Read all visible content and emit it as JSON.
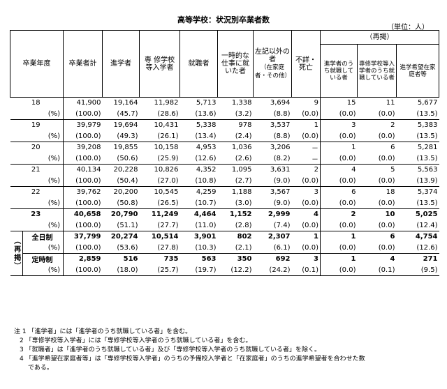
{
  "title": "高等学校：状況別卒業者数",
  "unit": "（単位：人）",
  "headers": {
    "year": "卒業年度",
    "total": "卒業者計",
    "advance": "進学者",
    "vocational": "専 修学校等入学者",
    "employed": "就職者",
    "temp": "一時的な仕事に就いた者",
    "other": "左記以外の者",
    "other_note": "（在家庭者・その他）",
    "unknown": "不詳・死亡",
    "reprint": "（再掲）",
    "r1": "進学者のうち就職している者",
    "r2": "専修学校等入学者のうち就職している者",
    "r3": "進学希望在家庭者等"
  },
  "rows": [
    {
      "label": "18",
      "values": [
        "41,900",
        "19,164",
        "11,982",
        "5,713",
        "1,338",
        "3,694",
        "9",
        "15",
        "11",
        "5,677"
      ],
      "pct": [
        "(100.0)",
        "(45.7)",
        "(28.6)",
        "(13.6)",
        "(3.2)",
        "(8.8)",
        "(0.0)",
        "(0.0)",
        "(0.0)",
        "(13.5)"
      ]
    },
    {
      "label": "19",
      "values": [
        "39,979",
        "19,694",
        "10,431",
        "5,338",
        "978",
        "3,537",
        "1",
        "3",
        "2",
        "5,383"
      ],
      "pct": [
        "(100.0)",
        "(49.3)",
        "(26.1)",
        "(13.4)",
        "(2.4)",
        "(8.8)",
        "(0.0)",
        "(0.0)",
        "(0.0)",
        "(13.5)"
      ]
    },
    {
      "label": "20",
      "values": [
        "39,208",
        "19,855",
        "10,158",
        "4,953",
        "1,036",
        "3,206",
        "－",
        "1",
        "6",
        "5,281"
      ],
      "pct": [
        "(100.0)",
        "(50.6)",
        "(25.9)",
        "(12.6)",
        "(2.6)",
        "(8.2)",
        "－",
        "(0.0)",
        "(0.0)",
        "(13.5)"
      ]
    },
    {
      "label": "21",
      "values": [
        "40,134",
        "20,228",
        "10,826",
        "4,352",
        "1,095",
        "3,631",
        "2",
        "4",
        "5",
        "5,563"
      ],
      "pct": [
        "(100.0)",
        "(50.4)",
        "(27.0)",
        "(10.8)",
        "(2.7)",
        "(9.0)",
        "(0.0)",
        "(0.0)",
        "(0.0)",
        "(13.9)"
      ]
    },
    {
      "label": "22",
      "values": [
        "39,762",
        "20,200",
        "10,545",
        "4,259",
        "1,188",
        "3,567",
        "3",
        "6",
        "18",
        "5,374"
      ],
      "pct": [
        "(100.0)",
        "(50.8)",
        "(26.5)",
        "(10.7)",
        "(3.0)",
        "(9.0)",
        "(0.0)",
        "(0.0)",
        "(0.0)",
        "(13.5)"
      ]
    },
    {
      "label": "23",
      "values": [
        "40,658",
        "20,790",
        "11,249",
        "4,464",
        "1,152",
        "2,999",
        "4",
        "2",
        "10",
        "5,025"
      ],
      "pct": [
        "(100.0)",
        "(51.1)",
        "(27.7)",
        "(11.0)",
        "(2.8)",
        "(7.4)",
        "(0.0)",
        "(0.0)",
        "(0.0)",
        "(12.4)"
      ]
    }
  ],
  "reprint_side": "（再掲）",
  "sub_rows": [
    {
      "label": "全日制",
      "values": [
        "37,799",
        "20,274",
        "10,514",
        "3,901",
        "802",
        "2,307",
        "1",
        "1",
        "6",
        "4,754"
      ],
      "pct": [
        "(100.0)",
        "(53.6)",
        "(27.8)",
        "(10.3)",
        "(2.1)",
        "(6.1)",
        "(0.0)",
        "(0.0)",
        "(0.0)",
        "(12.6)"
      ]
    },
    {
      "label": "定時制",
      "values": [
        "2,859",
        "516",
        "735",
        "563",
        "350",
        "692",
        "3",
        "1",
        "4",
        "271"
      ],
      "pct": [
        "(100.0)",
        "(18.0)",
        "(25.7)",
        "(19.7)",
        "(12.2)",
        "(24.2)",
        "(0.1)",
        "(0.0)",
        "(0.1)",
        "(9.5)"
      ]
    }
  ],
  "pct_label": "(%)",
  "notes": [
    "注 1 「進学者」には「進学者のうち就職している者」を含む。",
    "2 「専修学校等入学者」には「専修学校等入学者のうち就職している者」を含む。",
    "3 「就職者」は「進学者のうち就職している者」及び「専修学校等入学者のうち就職している者」を除く。",
    "4 「進学希望在家庭者等」は「専修学校等入学者」のうちの予備校入学者と「在家庭者」のうちの進学希望者を合わせた数",
    "である。"
  ]
}
